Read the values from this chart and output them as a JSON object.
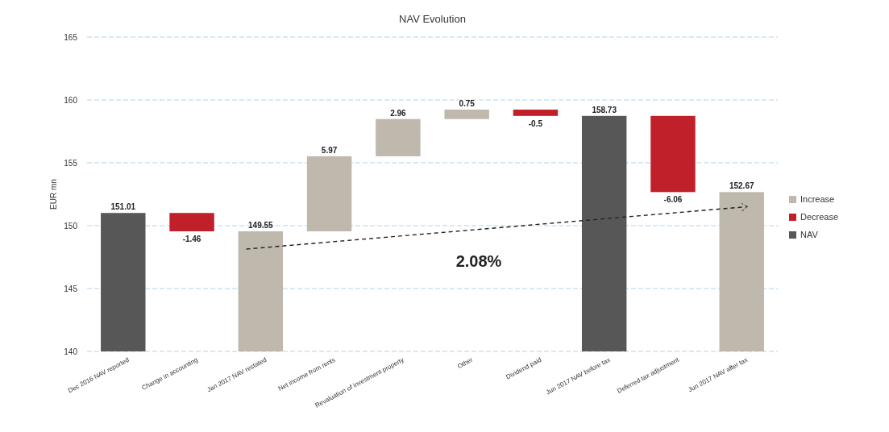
{
  "chart_data": {
    "type": "bar",
    "title": "NAV Evolution",
    "ylabel": "EUR mn",
    "categories": [
      "Dec 2016 NAV reported",
      "Change in accounting",
      "Jan 2017 NAV restated",
      "Net income from rents",
      "Revaluation of investment property",
      "Other",
      "Dividend paid",
      "Jun 2017 NAV before tax",
      "Deferred tax adjustment",
      "Jun 2017 NAV after tax"
    ],
    "series": [
      {
        "name": "Increase",
        "color": "#bfb8ad",
        "values": [
          null,
          null,
          149.55,
          5.97,
          2.96,
          0.75,
          null,
          null,
          null,
          152.67
        ],
        "base": [
          null,
          null,
          null,
          149.55,
          155.52,
          158.48,
          null,
          null,
          null,
          null
        ]
      },
      {
        "name": "Decrease",
        "color": "#c0202a",
        "values": [
          null,
          -1.46,
          null,
          null,
          null,
          null,
          -0.5,
          null,
          -6.06,
          null
        ],
        "base": [
          null,
          151.01,
          null,
          null,
          null,
          null,
          159.23,
          null,
          158.73,
          null
        ]
      },
      {
        "name": "NAV",
        "color": "#575757",
        "values": [
          151.01,
          null,
          null,
          null,
          null,
          null,
          null,
          158.73,
          null,
          null
        ]
      }
    ],
    "ylim": [
      140,
      165
    ],
    "yticks": [
      140,
      145,
      150,
      155,
      160,
      165
    ],
    "grid": "y",
    "legend": "right",
    "data_labels": true,
    "annotations": [
      "2.08%"
    ]
  }
}
